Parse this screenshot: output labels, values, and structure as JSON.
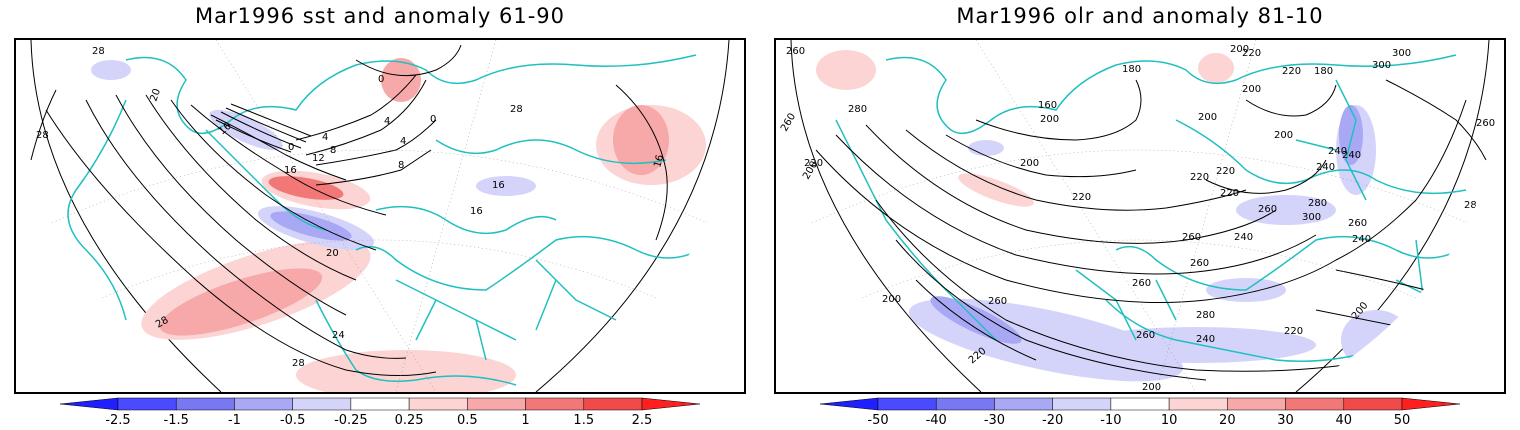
{
  "panels": [
    {
      "title": "Mar1996 sst and anomaly 61-90",
      "colorbar": {
        "labels": [
          "-2.5",
          "-1.5",
          "-1",
          "-0.5",
          "-0.25",
          "0.25",
          "0.5",
          "1",
          "1.5",
          "2.5"
        ],
        "colors": [
          "#1f1fff",
          "#4a4aff",
          "#7878f0",
          "#a8a8f5",
          "#d4d4fb",
          "#ffffff",
          "#fcd4d4",
          "#f7a8a8",
          "#f27878",
          "#f04a4a",
          "#ff1f1f"
        ]
      },
      "contour_labels": [
        "28",
        "20",
        "28",
        "0",
        "4",
        "4",
        "0",
        "8",
        "12",
        "16",
        "16",
        "16",
        "16",
        "4",
        "8",
        "20",
        "24",
        "28",
        "28",
        "28",
        "0",
        "16"
      ]
    },
    {
      "title": "Mar1996 olr and anomaly 81-10",
      "colorbar": {
        "labels": [
          "-50",
          "-40",
          "-30",
          "-20",
          "-10",
          "10",
          "20",
          "30",
          "40",
          "50"
        ],
        "colors": [
          "#1f1fff",
          "#4a4aff",
          "#7878f0",
          "#a8a8f5",
          "#d4d4fb",
          "#ffffff",
          "#fcd4d4",
          "#f7a8a8",
          "#f27878",
          "#f04a4a",
          "#ff1f1f"
        ]
      },
      "contour_labels": [
        "260",
        "280",
        "260",
        "220",
        "200",
        "180",
        "160",
        "200",
        "200",
        "220",
        "200",
        "200",
        "220",
        "180",
        "300",
        "300",
        "240",
        "260",
        "200",
        "220",
        "200",
        "240",
        "220",
        "220",
        "260",
        "300",
        "280",
        "280",
        "240",
        "260",
        "240",
        "260",
        "260",
        "200",
        "260",
        "280",
        "220",
        "260",
        "240",
        "220",
        "200",
        "220",
        "240",
        "260",
        "200"
      ]
    }
  ],
  "colors": {
    "coastline": "#20c0c0",
    "contour": "#000000",
    "frame": "#000000"
  }
}
